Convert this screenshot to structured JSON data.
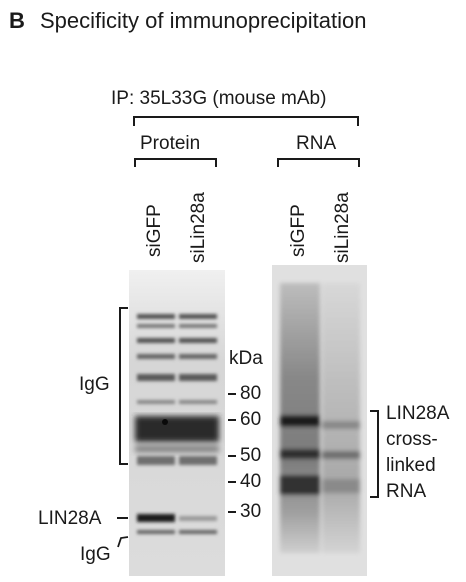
{
  "figure": {
    "panel_letter": "B",
    "title": "Specificity of immunoprecipitation",
    "ip_label": "IP: 35L33G (mouse mAb)",
    "groups": [
      {
        "label": "Protein",
        "lanes": [
          "siGFP",
          "siLin28a"
        ]
      },
      {
        "label": "RNA",
        "lanes": [
          "siGFP",
          "siLin28a"
        ]
      }
    ],
    "marker_unit": "kDa",
    "markers": [
      "80",
      "60",
      "50",
      "40",
      "30"
    ],
    "left_labels": {
      "igg_heavy": "IgG",
      "lin28a": "LIN28A",
      "igg_light": "IgG"
    },
    "right_label_lines": [
      "LIN28A",
      "cross-",
      "linked",
      "RNA"
    ]
  },
  "colors": {
    "ink": "#1a1a1a",
    "gel_bg": "#e2e2e2",
    "band": "#2b2b2b"
  }
}
